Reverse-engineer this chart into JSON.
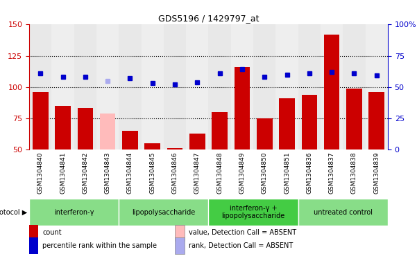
{
  "title": "GDS5196 / 1429797_at",
  "samples": [
    "GSM1304840",
    "GSM1304841",
    "GSM1304842",
    "GSM1304843",
    "GSM1304844",
    "GSM1304845",
    "GSM1304846",
    "GSM1304847",
    "GSM1304848",
    "GSM1304849",
    "GSM1304850",
    "GSM1304851",
    "GSM1304836",
    "GSM1304837",
    "GSM1304838",
    "GSM1304839"
  ],
  "bar_values": [
    96,
    85,
    83,
    79,
    65,
    55,
    51,
    63,
    80,
    116,
    75,
    91,
    94,
    142,
    99,
    96
  ],
  "bar_colors": [
    "#cc0000",
    "#cc0000",
    "#cc0000",
    "#ffbbbb",
    "#cc0000",
    "#cc0000",
    "#cc0000",
    "#cc0000",
    "#cc0000",
    "#cc0000",
    "#cc0000",
    "#cc0000",
    "#cc0000",
    "#cc0000",
    "#cc0000",
    "#cc0000"
  ],
  "rank_values": [
    111,
    108,
    108,
    105,
    107,
    103,
    102,
    104,
    111,
    114,
    108,
    110,
    111,
    112,
    111,
    109
  ],
  "rank_colors": [
    "#0000cc",
    "#0000cc",
    "#0000cc",
    "#aaaaee",
    "#0000cc",
    "#0000cc",
    "#0000cc",
    "#0000cc",
    "#0000cc",
    "#0000cc",
    "#0000cc",
    "#0000cc",
    "#0000cc",
    "#0000cc",
    "#0000cc",
    "#0000cc"
  ],
  "ylim_left": [
    50,
    150
  ],
  "ylim_right": [
    0,
    100
  ],
  "yticks_left": [
    50,
    75,
    100,
    125,
    150
  ],
  "yticks_right": [
    0,
    25,
    50,
    75,
    100
  ],
  "ytick_labels_right": [
    "0",
    "25",
    "50",
    "75",
    "100%"
  ],
  "hlines": [
    75,
    100,
    125
  ],
  "groups": [
    {
      "label": "interferon-γ",
      "start": 0,
      "end": 4,
      "color": "#88dd88"
    },
    {
      "label": "lipopolysaccharide",
      "start": 4,
      "end": 8,
      "color": "#88dd88"
    },
    {
      "label": "interferon-γ +\nlipopolysaccharide",
      "start": 8,
      "end": 12,
      "color": "#44cc44"
    },
    {
      "label": "untreated control",
      "start": 12,
      "end": 16,
      "color": "#88dd88"
    }
  ],
  "protocol_label": "protocol",
  "legend_items": [
    {
      "color": "#cc0000",
      "label": "count",
      "marker": "s"
    },
    {
      "color": "#0000cc",
      "label": "percentile rank within the sample",
      "marker": "s"
    },
    {
      "color": "#ffbbbb",
      "label": "value, Detection Call = ABSENT",
      "marker": "s"
    },
    {
      "color": "#aaaaee",
      "label": "rank, Detection Call = ABSENT",
      "marker": "s"
    }
  ],
  "left_tick_color": "#cc0000",
  "right_tick_color": "#0000cc",
  "bar_width": 0.7,
  "rank_marker_size": 5,
  "plot_bg": "#f2f2f2"
}
